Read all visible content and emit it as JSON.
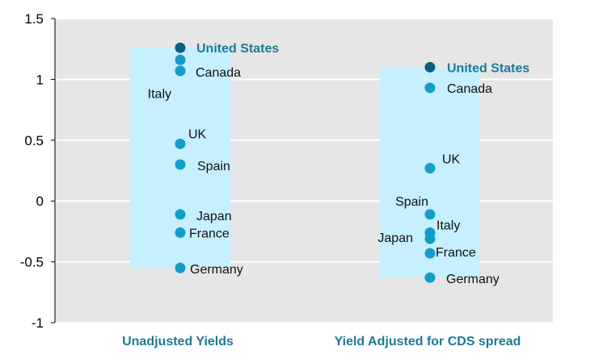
{
  "colors": {
    "plot_bg": "#e6e6e6",
    "range_band": "#c6efff",
    "point": "#139dc9",
    "highlight_point": "#0b5f7d",
    "highlight_text": "#1d7a96",
    "category_text": "#1d7a96"
  },
  "chart_data": {
    "type": "scatter",
    "title": "",
    "xlabel": "",
    "ylabel": "",
    "ylim": [
      -1,
      1.5
    ],
    "yticks": [
      "1.5",
      "1",
      "0.5",
      "0",
      "-0.5",
      "-1"
    ],
    "grid": "horizontal",
    "categories": [
      "Unadjusted Yields",
      "Yield Adjusted for CDS spread"
    ],
    "groups": [
      {
        "category": "Unadjusted Yields",
        "range": [
          -0.55,
          1.26
        ],
        "points": [
          {
            "label": "United States",
            "value": 1.26,
            "highlight": true
          },
          {
            "label": "Italy",
            "value": 1.16,
            "highlight": false
          },
          {
            "label": "Canada",
            "value": 1.07,
            "highlight": false
          },
          {
            "label": "UK",
            "value": 0.47,
            "highlight": false
          },
          {
            "label": "Spain",
            "value": 0.3,
            "highlight": false
          },
          {
            "label": "Japan",
            "value": -0.11,
            "highlight": false
          },
          {
            "label": "France",
            "value": -0.26,
            "highlight": false
          },
          {
            "label": "Germany",
            "value": -0.55,
            "highlight": false
          }
        ]
      },
      {
        "category": "Yield Adjusted for CDS spread",
        "range": [
          -0.63,
          1.1
        ],
        "points": [
          {
            "label": "United States",
            "value": 1.1,
            "highlight": true
          },
          {
            "label": "Canada",
            "value": 0.93,
            "highlight": false
          },
          {
            "label": "UK",
            "value": 0.27,
            "highlight": false
          },
          {
            "label": "Spain",
            "value": -0.11,
            "highlight": false
          },
          {
            "label": "Italy",
            "value": -0.26,
            "highlight": false
          },
          {
            "label": "Japan",
            "value": -0.31,
            "highlight": false
          },
          {
            "label": "France",
            "value": -0.43,
            "highlight": false
          },
          {
            "label": "Germany",
            "value": -0.63,
            "highlight": false
          }
        ]
      }
    ]
  }
}
